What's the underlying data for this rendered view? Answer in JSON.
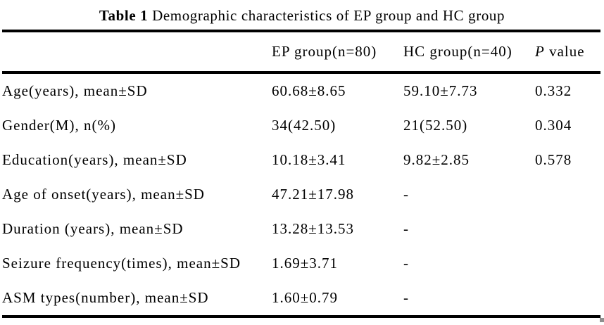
{
  "caption": {
    "bold": "Table 1",
    "rest": " Demographic characteristics of EP group and HC group"
  },
  "table": {
    "header": {
      "stub": "",
      "ep": "EP group(n=80)",
      "hc": "HC group(n=40)",
      "p_italic": "P",
      "p_rest": " value"
    },
    "rows": [
      {
        "label": "Age(years), mean±SD",
        "ep": "60.68±8.65",
        "hc": "59.10±7.73",
        "p": "0.332"
      },
      {
        "label": "Gender(M), n(%)",
        "ep": "34(42.50)",
        "hc": "21(52.50)",
        "p": "0.304"
      },
      {
        "label": "Education(years), mean±SD",
        "ep": "10.18±3.41",
        "hc": "9.82±2.85",
        "p": "0.578"
      },
      {
        "label": "Age of onset(years), mean±SD",
        "ep": "47.21±17.98",
        "hc": "-",
        "p": ""
      },
      {
        "label": "Duration (years), mean±SD",
        "ep": "13.28±13.53",
        "hc": "-",
        "p": ""
      },
      {
        "label": "Seizure frequency(times), mean±SD",
        "ep": "1.69±3.71",
        "hc": "-",
        "p": ""
      },
      {
        "label": "ASM types(number), mean±SD",
        "ep": "1.60±0.79",
        "hc": "-",
        "p": ""
      }
    ]
  },
  "colors": {
    "text": "#000000",
    "rule": "#000000",
    "background": "#ffffff",
    "resize_handle": "#8f8f8f"
  }
}
